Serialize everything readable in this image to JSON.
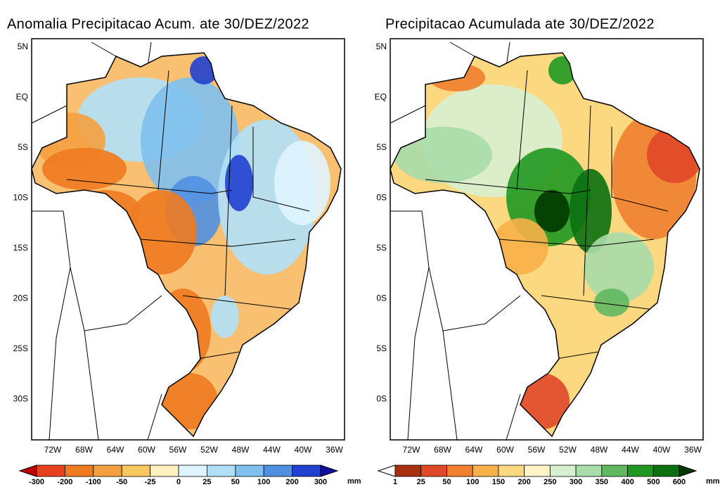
{
  "panels": [
    {
      "title": "Anomalia Precipitacao Acum. ate 30/DEZ/2022",
      "lat_labels": [
        "5N",
        "EQ",
        "5S",
        "10S",
        "15S",
        "20S",
        "25S",
        "30S"
      ],
      "lon_labels": [
        "72W",
        "68W",
        "64W",
        "60W",
        "56W",
        "52W",
        "48W",
        "44W",
        "40W",
        "36W"
      ],
      "colorbar": {
        "labels": [
          "-300",
          "-200",
          "-100",
          "-50",
          "-25",
          "0",
          "25",
          "50",
          "100",
          "200",
          "300"
        ],
        "colors": [
          "#c00000",
          "#e8401c",
          "#f07a20",
          "#f5a040",
          "#f8c860",
          "#fff0c0",
          "#e0f4ff",
          "#b0e0f8",
          "#80c0f0",
          "#5090e0",
          "#2040d0",
          "#1010a0"
        ],
        "unit": "mm"
      }
    },
    {
      "title": "Precipitacao Acumulada ate 30/DEZ/2022",
      "lat_labels": [
        "5N",
        "EQ",
        "5S",
        "0S",
        "5S",
        "0S",
        "5S",
        "0S"
      ],
      "lon_labels": [
        "72W",
        "68W",
        "64W",
        "60W",
        "56W",
        "52W",
        "48W",
        "44W",
        "40W",
        "36W"
      ],
      "colorbar": {
        "labels": [
          "1",
          "25",
          "50",
          "100",
          "150",
          "200",
          "250",
          "300",
          "350",
          "400",
          "500",
          "600"
        ],
        "colors": [
          "#ffffff",
          "#a83010",
          "#e04828",
          "#f08030",
          "#f8b048",
          "#fcd880",
          "#fff4c8",
          "#d8f0d0",
          "#a8dca8",
          "#60b860",
          "#209820",
          "#0a7010",
          "#003800"
        ],
        "unit": "mm"
      }
    }
  ]
}
